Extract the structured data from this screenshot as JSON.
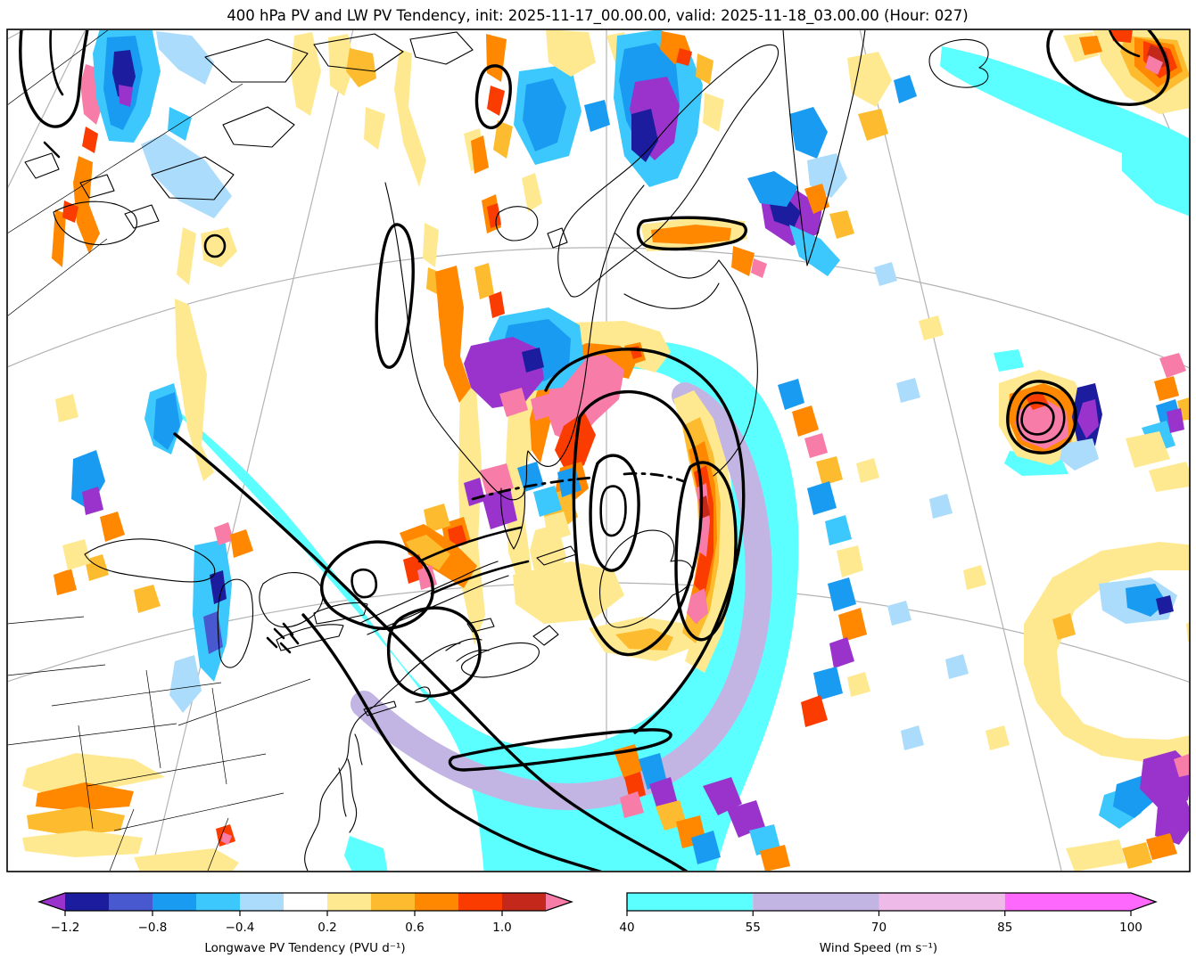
{
  "title": "400 hPa PV and LW PV Tendency, init: 2025-11-17_00.00.00, valid: 2025-11-18_03.00.00 (Hour: 027)",
  "colors": {
    "background": "#ffffff",
    "pv_contour": "#000000",
    "coastline": "#000000",
    "graticule": "#b3b3b3"
  },
  "chart_data": {
    "type": "heatmap",
    "title": "400 hPa PV and LW PV Tendency, init: 2025-11-17_00.00.00, valid: 2025-11-18_03.00.00 (Hour: 027)",
    "map_content": {
      "shaded_fields": [
        "Longwave PV Tendency (PVU d⁻¹)",
        "Wind Speed (m s⁻¹)"
      ],
      "line_overlays": [
        "PV contours (thick black)",
        "coastlines",
        "graticule"
      ]
    },
    "colorbars": [
      {
        "id": "lw_pv_tendency",
        "label": "Longwave PV Tendency (PVU d⁻¹)",
        "orientation": "horizontal",
        "levels": [
          -1.2,
          -1.0,
          -0.8,
          -0.6,
          -0.4,
          -0.2,
          0.2,
          0.4,
          0.6,
          0.8,
          1.0,
          1.2
        ],
        "segment_colors": [
          "#1c1c9e",
          "#4858cf",
          "#199bf2",
          "#3cc8fc",
          "#abdcfb",
          "#ffffff",
          "#ffe990",
          "#fdbb30",
          "#ff8800",
          "#fa3c00",
          "#c4281b"
        ],
        "extend_low_color": "#9933cc",
        "extend_high_color": "#f77ca8",
        "ticks": [
          -1.2,
          -0.8,
          -0.4,
          0.2,
          0.6,
          1.0
        ],
        "tick_labels": [
          "−1.2",
          "−0.8",
          "−0.4",
          "0.2",
          "0.6",
          "1.0"
        ]
      },
      {
        "id": "wind_speed",
        "label": "Wind Speed (m s⁻¹)",
        "orientation": "horizontal",
        "levels": [
          40,
          55,
          70,
          85,
          100
        ],
        "segment_colors": [
          "#5cffff",
          "#c2b5e3",
          "#eebbe8",
          "#fe68fc"
        ],
        "extend_low_color": null,
        "extend_high_color": "#fe68fc",
        "ticks": [
          40,
          55,
          70,
          85,
          100
        ],
        "tick_labels": [
          "40",
          "55",
          "70",
          "85",
          "100"
        ]
      }
    ]
  }
}
